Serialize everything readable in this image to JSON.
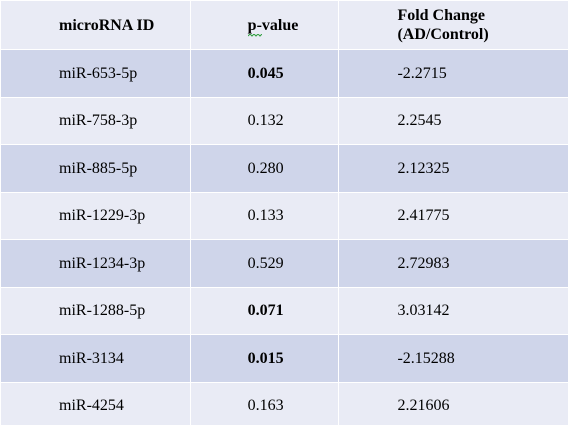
{
  "table": {
    "headers": [
      "microRNA ID",
      "p-value",
      "Fold Change\n(AD/Control)"
    ],
    "rows": [
      {
        "id": "miR-653-5p",
        "p_value": "0.045",
        "fold_change": "-2.2715",
        "p_bold": true
      },
      {
        "id": "miR-758-3p",
        "p_value": "0.132",
        "fold_change": "2.2545",
        "p_bold": false
      },
      {
        "id": "miR-885-5p",
        "p_value": "0.280",
        "fold_change": "2.12325",
        "p_bold": false
      },
      {
        "id": "miR-1229-3p",
        "p_value": "0.133",
        "fold_change": "2.41775",
        "p_bold": false
      },
      {
        "id": "miR-1234-3p",
        "p_value": "0.529",
        "fold_change": "2.72983",
        "p_bold": false
      },
      {
        "id": "miR-1288-5p",
        "p_value": "0.071",
        "fold_change": "3.03142",
        "p_bold": true
      },
      {
        "id": "miR-3134",
        "p_value": "0.015",
        "fold_change": "-2.15288",
        "p_bold": true
      },
      {
        "id": "miR-4254",
        "p_value": "0.163",
        "fold_change": "2.21606",
        "p_bold": false
      }
    ]
  },
  "colors": {
    "header_bg": "#e9ebf5",
    "row_light": "#e9ebf5",
    "row_dark": "#cfd5ea",
    "grid": "#ffffff"
  }
}
